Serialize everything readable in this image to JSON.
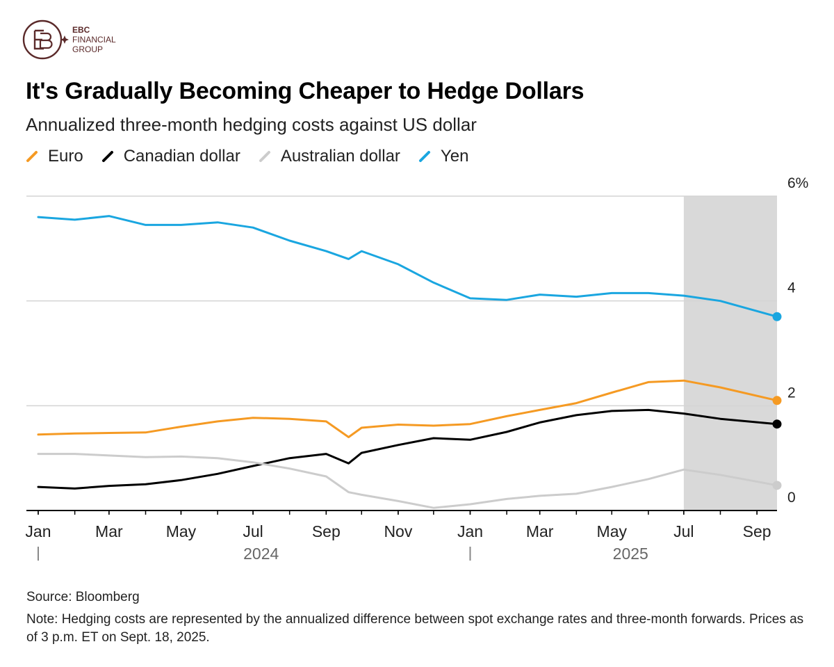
{
  "logo": {
    "brand": "EBC",
    "line2": "FINANCIAL",
    "line3": "GROUP",
    "color": "#5b2a2a"
  },
  "title": "It's Gradually Becoming Cheaper to Hedge Dollars",
  "subtitle": "Annualized three-month hedging costs against US dollar",
  "footer": {
    "source": "Source: Bloomberg",
    "note": "Note: Hedging costs are represented by the annualized difference between spot exchange rates and three-month forwards. Prices as of 3 p.m. ET on Sept. 18, 2025."
  },
  "chart_data": {
    "type": "line",
    "title": "It's Gradually Becoming Cheaper to Hedge Dollars",
    "subtitle": "Annualized three-month hedging costs against US dollar",
    "xlabel": "",
    "ylabel": "",
    "x": [
      "2024-01-01",
      "2024-02-01",
      "2024-03-01",
      "2024-04-01",
      "2024-05-01",
      "2024-06-01",
      "2024-07-01",
      "2024-08-01",
      "2024-09-01",
      "2024-09-20",
      "2024-10-01",
      "2024-11-01",
      "2024-12-01",
      "2025-01-01",
      "2025-02-01",
      "2025-03-01",
      "2025-04-01",
      "2025-05-01",
      "2025-06-01",
      "2025-07-01",
      "2025-08-01",
      "2025-09-18"
    ],
    "series": [
      {
        "name": "Euro",
        "color": "#f59a23",
        "values": [
          1.45,
          1.47,
          1.48,
          1.49,
          1.6,
          1.7,
          1.77,
          1.75,
          1.7,
          1.4,
          1.58,
          1.64,
          1.62,
          1.65,
          1.8,
          1.92,
          2.05,
          2.25,
          2.45,
          2.48,
          2.35,
          2.1
        ]
      },
      {
        "name": "Canadian dollar",
        "color": "#000000",
        "values": [
          0.45,
          0.42,
          0.47,
          0.5,
          0.58,
          0.7,
          0.85,
          1.0,
          1.08,
          0.9,
          1.1,
          1.25,
          1.38,
          1.35,
          1.5,
          1.68,
          1.82,
          1.9,
          1.92,
          1.85,
          1.75,
          1.65
        ]
      },
      {
        "name": "Australian dollar",
        "color": "#cccccc",
        "values": [
          1.08,
          1.08,
          1.05,
          1.02,
          1.03,
          1.0,
          0.92,
          0.8,
          0.65,
          0.35,
          0.3,
          0.18,
          0.05,
          0.12,
          0.22,
          0.28,
          0.32,
          0.45,
          0.6,
          0.78,
          0.68,
          0.48
        ]
      },
      {
        "name": "Yen",
        "color": "#1aa6e0",
        "values": [
          5.6,
          5.55,
          5.62,
          5.45,
          5.45,
          5.5,
          5.4,
          5.15,
          4.95,
          4.8,
          4.95,
          4.7,
          4.35,
          4.05,
          4.02,
          4.12,
          4.08,
          4.15,
          4.15,
          4.1,
          4.0,
          3.7
        ]
      }
    ],
    "ylim": [
      0,
      6
    ],
    "y_ticks": [
      {
        "value": 0,
        "label": "0"
      },
      {
        "value": 2,
        "label": "2"
      },
      {
        "value": 4,
        "label": "4"
      },
      {
        "value": 6,
        "label": "6%"
      }
    ],
    "x_ticks": [
      {
        "date": "2024-01-01",
        "label": "Jan"
      },
      {
        "date": "2024-03-01",
        "label": "Mar"
      },
      {
        "date": "2024-05-01",
        "label": "May"
      },
      {
        "date": "2024-07-01",
        "label": "Jul"
      },
      {
        "date": "2024-09-01",
        "label": "Sep"
      },
      {
        "date": "2024-11-01",
        "label": "Nov"
      },
      {
        "date": "2025-01-01",
        "label": "Jan"
      },
      {
        "date": "2025-03-01",
        "label": "Mar"
      },
      {
        "date": "2025-05-01",
        "label": "May"
      },
      {
        "date": "2025-07-01",
        "label": "Jul"
      },
      {
        "date": "2025-09-01",
        "label": "Sep"
      }
    ],
    "years": [
      {
        "label": "2024",
        "start": "2024-01-01",
        "end": "2025-01-01"
      },
      {
        "label": "2025",
        "start": "2025-01-01",
        "end": "2025-10-01"
      }
    ],
    "shaded_region": {
      "start": "2025-07-01",
      "end": "2025-09-18",
      "color": "#d9d9d9"
    },
    "x_range": [
      "2023-12-22",
      "2025-09-18"
    ],
    "grid": true,
    "y_axis_side": "right",
    "legend_position": "top-left"
  }
}
